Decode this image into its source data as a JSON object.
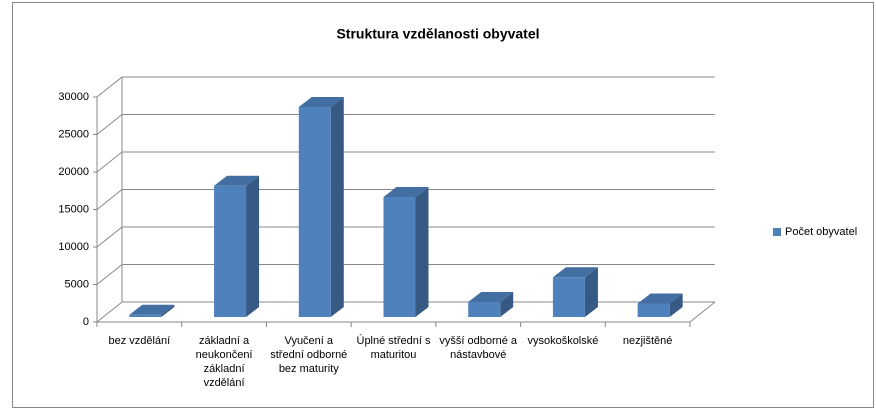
{
  "chart_data": {
    "type": "bar3d",
    "title": "Struktura vzdělanosti obyvatel",
    "categories": [
      "bez vzdělání",
      "základní a neukončení základní vzdělání",
      "Vyučení a střední odborné bez maturity",
      "Úplné střední s maturitou",
      "vyšší odborné a nástavbové",
      "vysokoškolské",
      "nezjištěné"
    ],
    "series": [
      {
        "name": "Počet obyvatel",
        "color": "#4f81bd",
        "values": [
          300,
          17500,
          28000,
          16000,
          2000,
          5300,
          1800
        ]
      }
    ],
    "ylim": [
      0,
      30000
    ],
    "yticks": [
      0,
      5000,
      10000,
      15000,
      20000,
      25000,
      30000
    ],
    "grid": true,
    "legend": "right"
  }
}
